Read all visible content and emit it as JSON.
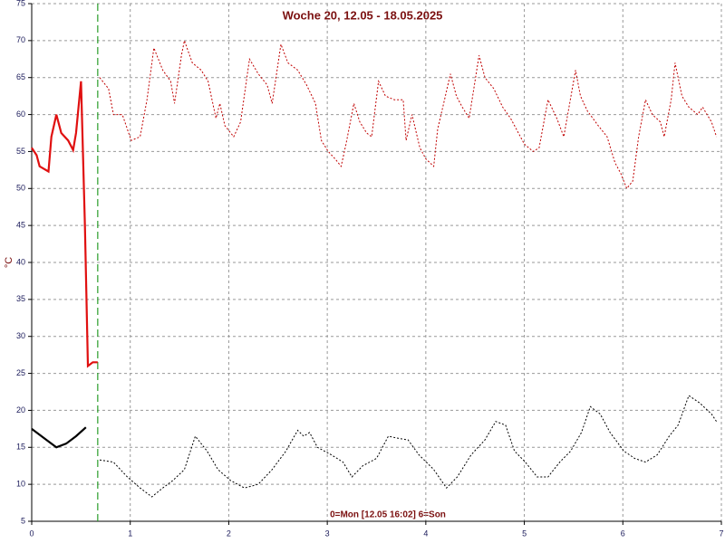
{
  "chart_data": {
    "type": "line",
    "title": "Woche 20, 12.05 - 18.05.2025",
    "x_label": "0=Mon [12.05 16:02] 6=Son",
    "y_label": "°C",
    "xlim": [
      0,
      7
    ],
    "xticks": [
      0,
      1,
      2,
      3,
      4,
      5,
      6,
      7
    ],
    "ylim": [
      5,
      75
    ],
    "yticks": [
      5,
      10,
      15,
      20,
      25,
      30,
      35,
      40,
      45,
      50,
      55,
      60,
      65,
      70,
      75
    ],
    "grid": true,
    "vline": {
      "x": 0.67,
      "color": "#2a9d2a"
    },
    "series": [
      {
        "color": "#e01010",
        "style": "solid",
        "x": [
          0,
          0.05,
          0.08,
          0.17,
          0.2,
          0.25,
          0.3,
          0.37,
          0.42,
          0.45,
          0.5,
          0.54,
          0.57,
          0.62,
          0.67
        ],
        "values": [
          55.5,
          54.5,
          53,
          52.3,
          57,
          60,
          57.5,
          56.5,
          55.2,
          57.5,
          64.5,
          45,
          26,
          26.5,
          26.5
        ]
      },
      {
        "color": "#c00000",
        "style": "dotted",
        "x": [
          0.69,
          0.78,
          0.83,
          0.92,
          1.01,
          1.1,
          1.17,
          1.24,
          1.33,
          1.41,
          1.45,
          1.52,
          1.55,
          1.63,
          1.72,
          1.79,
          1.87,
          1.91,
          1.96,
          2.05,
          2.12,
          2.21,
          2.3,
          2.39,
          2.44,
          2.53,
          2.6,
          2.7,
          2.79,
          2.88,
          2.94,
          3.01,
          3.08,
          3.14,
          3.19,
          3.27,
          3.33,
          3.4,
          3.45,
          3.52,
          3.59,
          3.68,
          3.77,
          3.8,
          3.86,
          3.94,
          4.0,
          4.08,
          4.12,
          4.19,
          4.25,
          4.31,
          4.37,
          4.44,
          4.54,
          4.6,
          4.69,
          4.78,
          4.86,
          4.92,
          5.0,
          5.09,
          5.15,
          5.24,
          5.33,
          5.4,
          5.52,
          5.57,
          5.64,
          5.75,
          5.84,
          5.92,
          5.98,
          6.04,
          6.1,
          6.16,
          6.23,
          6.3,
          6.38,
          6.42,
          6.49,
          6.53,
          6.6,
          6.67,
          6.76,
          6.81,
          6.9,
          6.95
        ],
        "values": [
          65,
          63.5,
          60,
          60,
          56.5,
          57,
          62,
          69,
          66,
          64.5,
          61.5,
          68,
          70,
          67,
          66,
          64.5,
          59.5,
          61.5,
          58.5,
          57,
          59,
          67.5,
          65.5,
          64,
          61.5,
          69.5,
          67,
          66,
          64,
          61.5,
          56.5,
          55,
          54,
          53,
          56,
          61.5,
          59,
          57.5,
          57,
          64.5,
          62.5,
          62,
          62,
          56.5,
          60,
          55.5,
          54,
          53,
          58,
          62,
          65.5,
          62.5,
          61,
          59.5,
          68,
          65,
          63.5,
          61,
          59.5,
          58,
          56,
          55,
          55.5,
          62,
          59.5,
          57,
          66,
          62.5,
          60.5,
          58.5,
          57,
          53.5,
          52,
          50,
          51,
          57,
          62,
          60,
          59,
          57,
          62,
          67,
          62.5,
          61,
          60,
          61,
          59,
          57
        ]
      },
      {
        "color": "#000000",
        "style": "solid",
        "x": [
          0,
          0.15,
          0.25,
          0.35,
          0.45,
          0.55
        ],
        "values": [
          17.5,
          16,
          15,
          15.5,
          16.5,
          17.7
        ]
      },
      {
        "color": "#000000",
        "style": "dotted",
        "x": [
          0.69,
          0.83,
          0.97,
          1.1,
          1.22,
          1.33,
          1.43,
          1.55,
          1.66,
          1.78,
          1.89,
          2.02,
          2.16,
          2.3,
          2.44,
          2.58,
          2.7,
          2.76,
          2.82,
          2.9,
          3.04,
          3.16,
          3.25,
          3.36,
          3.5,
          3.62,
          3.73,
          3.82,
          3.93,
          4.08,
          4.21,
          4.32,
          4.46,
          4.6,
          4.71,
          4.81,
          4.9,
          5.01,
          5.13,
          5.24,
          5.36,
          5.47,
          5.58,
          5.67,
          5.77,
          5.87,
          6.01,
          6.12,
          6.23,
          6.35,
          6.47,
          6.56,
          6.67,
          6.78,
          6.9,
          6.95
        ],
        "values": [
          13.3,
          13,
          11,
          9.5,
          8.3,
          9.5,
          10.5,
          12,
          16.5,
          14.5,
          12,
          10.5,
          9.5,
          10,
          12,
          14.5,
          17.3,
          16.5,
          17,
          15,
          14,
          13,
          11,
          12.5,
          13.5,
          16.5,
          16.2,
          16,
          14,
          12,
          9.5,
          11,
          14,
          16,
          18.5,
          18,
          14.5,
          13,
          11,
          11,
          13,
          14.5,
          17,
          20.5,
          19.5,
          17,
          14.5,
          13.5,
          13,
          14,
          16.5,
          18,
          22,
          21,
          19.5,
          18.5
        ]
      }
    ]
  }
}
